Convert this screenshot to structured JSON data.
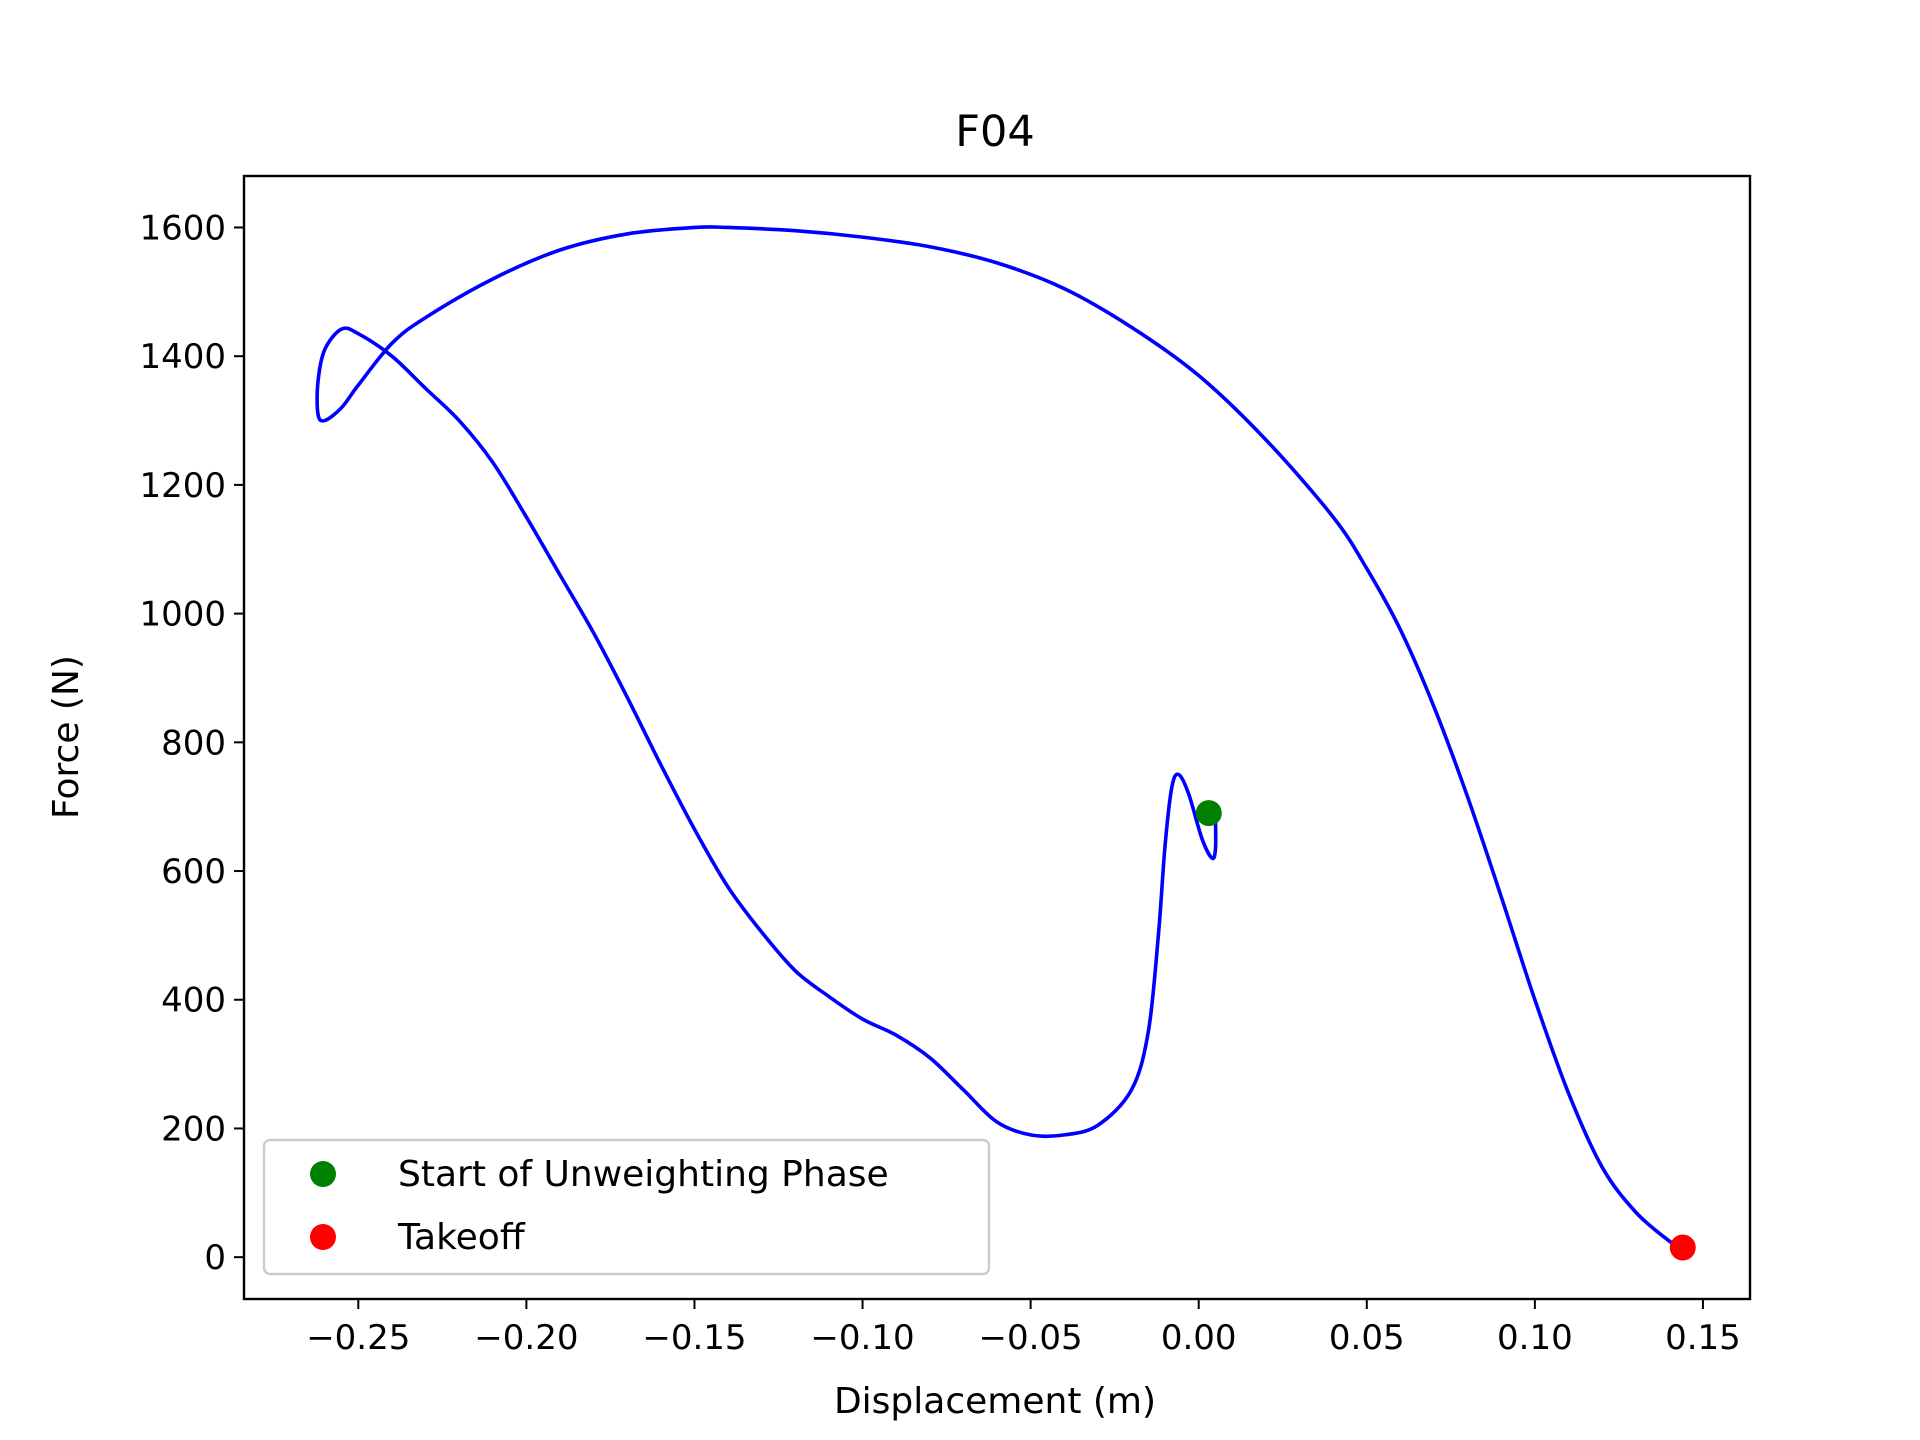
{
  "chart_data": {
    "type": "line",
    "title": "F04",
    "xlabel": "Displacement (m)",
    "ylabel": "Force (N)",
    "xlim": [
      -0.284,
      0.164
    ],
    "ylim": [
      -65,
      1680
    ],
    "xticks": [
      -0.25,
      -0.2,
      -0.15,
      -0.1,
      -0.05,
      0.0,
      0.05,
      0.1,
      0.15
    ],
    "xtick_labels": [
      "−0.25",
      "−0.20",
      "−0.15",
      "−0.10",
      "−0.05",
      "0.00",
      "0.05",
      "0.10",
      "0.15"
    ],
    "yticks": [
      0,
      200,
      400,
      600,
      800,
      1000,
      1200,
      1400,
      1600
    ],
    "ytick_labels": [
      "0",
      "200",
      "400",
      "600",
      "800",
      "1000",
      "1200",
      "1400",
      "1600"
    ],
    "grid": false,
    "legend_position": "lower left",
    "series": [
      {
        "color": "#0000ff",
        "points": [
          [
            0.005,
            680
          ],
          [
            0.005,
            635
          ],
          [
            0.004,
            620
          ],
          [
            0.001,
            650
          ],
          [
            -0.003,
            720
          ],
          [
            -0.006,
            750
          ],
          [
            -0.008,
            730
          ],
          [
            -0.01,
            640
          ],
          [
            -0.012,
            500
          ],
          [
            -0.015,
            350
          ],
          [
            -0.02,
            260
          ],
          [
            -0.03,
            205
          ],
          [
            -0.04,
            190
          ],
          [
            -0.05,
            190
          ],
          [
            -0.06,
            210
          ],
          [
            -0.07,
            260
          ],
          [
            -0.08,
            310
          ],
          [
            -0.09,
            345
          ],
          [
            -0.1,
            370
          ],
          [
            -0.11,
            405
          ],
          [
            -0.12,
            445
          ],
          [
            -0.13,
            505
          ],
          [
            -0.14,
            575
          ],
          [
            -0.15,
            665
          ],
          [
            -0.16,
            765
          ],
          [
            -0.17,
            870
          ],
          [
            -0.18,
            970
          ],
          [
            -0.19,
            1060
          ],
          [
            -0.2,
            1150
          ],
          [
            -0.21,
            1235
          ],
          [
            -0.22,
            1300
          ],
          [
            -0.23,
            1350
          ],
          [
            -0.24,
            1400
          ],
          [
            -0.25,
            1435
          ],
          [
            -0.255,
            1442
          ],
          [
            -0.26,
            1410
          ],
          [
            -0.262,
            1360
          ],
          [
            -0.262,
            1310
          ],
          [
            -0.26,
            1300
          ],
          [
            -0.255,
            1320
          ],
          [
            -0.25,
            1355
          ],
          [
            -0.24,
            1420
          ],
          [
            -0.23,
            1460
          ],
          [
            -0.21,
            1520
          ],
          [
            -0.19,
            1565
          ],
          [
            -0.17,
            1590
          ],
          [
            -0.15,
            1600
          ],
          [
            -0.14,
            1600
          ],
          [
            -0.12,
            1595
          ],
          [
            -0.1,
            1585
          ],
          [
            -0.08,
            1570
          ],
          [
            -0.06,
            1545
          ],
          [
            -0.04,
            1505
          ],
          [
            -0.02,
            1445
          ],
          [
            0.0,
            1370
          ],
          [
            0.02,
            1270
          ],
          [
            0.04,
            1150
          ],
          [
            0.05,
            1070
          ],
          [
            0.06,
            975
          ],
          [
            0.07,
            855
          ],
          [
            0.08,
            715
          ],
          [
            0.09,
            560
          ],
          [
            0.1,
            400
          ],
          [
            0.11,
            255
          ],
          [
            0.12,
            140
          ],
          [
            0.13,
            70
          ],
          [
            0.14,
            25
          ],
          [
            0.144,
            12
          ]
        ]
      }
    ],
    "markers": [
      {
        "label": "Start of Unweighting Phase",
        "x": 0.003,
        "y": 690,
        "color": "#008000"
      },
      {
        "label": "Takeoff",
        "x": 0.144,
        "y": 15,
        "color": "#ff0000"
      }
    ]
  }
}
